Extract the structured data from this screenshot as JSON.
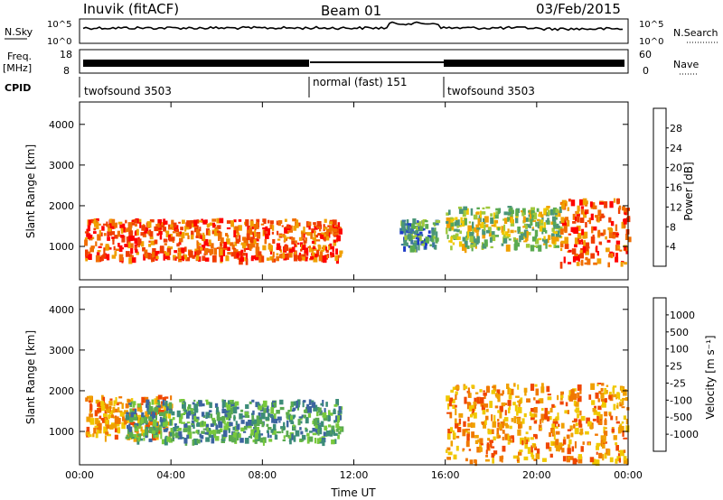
{
  "header": {
    "station": "Inuvik (fitACF)",
    "beam": "Beam 01",
    "date": "03/Feb/2015"
  },
  "top_panels": {
    "nsky_label": "N.Sky",
    "nsearch_label": "N.Search",
    "noise_ticks_left": [
      "10^5",
      "10^0"
    ],
    "noise_ticks_right": [
      "10^5",
      "10^0"
    ],
    "freq_label": "Freq.",
    "freq_unit": "[MHz]",
    "freq_ticks": [
      "18",
      "8"
    ],
    "nave_label": "Nave",
    "nave_ticks": [
      "60",
      "0"
    ],
    "cpid_label": "CPID",
    "cpid_segments": [
      {
        "label": "twofsound 3503",
        "start_hour": 0,
        "end_hour": 10
      },
      {
        "label": "normal (fast) 151",
        "start_hour": 10,
        "end_hour": 16
      },
      {
        "label": "twofsound 3503",
        "start_hour": 16,
        "end_hour": 24
      }
    ]
  },
  "chart_data": [
    {
      "type": "heatmap",
      "panel": "power",
      "ylabel": "Slant Range [km]",
      "xlabel": "Time UT",
      "x_ticks": [
        "00:00",
        "04:00",
        "08:00",
        "12:00",
        "16:00",
        "20:00",
        "00:00"
      ],
      "y_ticks": [
        1000,
        2000,
        3000,
        4000
      ],
      "xlim": [
        0,
        24
      ],
      "ylim": [
        180,
        4550
      ],
      "colorbar": {
        "label": "Power [dB]",
        "ticks": [
          "28",
          "24",
          "20",
          "16",
          "12",
          "8",
          "4"
        ],
        "colors": [
          "#0000ff",
          "#1e3cc8",
          "#3c78a0",
          "#4b9678",
          "#5aaa50",
          "#a0c83c",
          "#f0c800",
          "#f0a000",
          "#f06e00",
          "#f03c00",
          "#ff0000"
        ]
      },
      "features": [
        {
          "t0": 0.2,
          "t1": 11.4,
          "r0": 700,
          "r1": 1700,
          "level": "high"
        },
        {
          "t0": 14.0,
          "t1": 15.6,
          "r0": 1000,
          "r1": 1700,
          "level": "low"
        },
        {
          "t0": 16.0,
          "t1": 21.0,
          "r0": 1000,
          "r1": 2000,
          "level": "mid"
        },
        {
          "t0": 21.0,
          "t1": 24.0,
          "r0": 600,
          "r1": 2200,
          "level": "high"
        }
      ]
    },
    {
      "type": "heatmap",
      "panel": "velocity",
      "ylabel": "Slant Range [km]",
      "xlabel": "Time UT",
      "x_ticks": [
        "00:00",
        "04:00",
        "08:00",
        "12:00",
        "16:00",
        "20:00",
        "00:00"
      ],
      "y_ticks": [
        1000,
        2000,
        3000,
        4000
      ],
      "xlim": [
        0,
        24
      ],
      "ylim": [
        180,
        4550
      ],
      "colorbar": {
        "label": "Velocity [m s⁻¹]",
        "ticks": [
          "1000",
          "500",
          "100",
          "25",
          "-25",
          "-100",
          "-500",
          "-1000"
        ],
        "colors": [
          "#1e3cc8",
          "#3c64a0",
          "#3c8c78",
          "#5aaa50",
          "#78c83c",
          "#c8c8c8",
          "#f0c800",
          "#f0a000",
          "#f07800",
          "#f04600",
          "#ff0000"
        ]
      },
      "features": [
        {
          "t0": 0.2,
          "t1": 4.0,
          "r0": 900,
          "r1": 1900,
          "level": "negative"
        },
        {
          "t0": 2.0,
          "t1": 11.4,
          "r0": 800,
          "r1": 1800,
          "level": "positive"
        },
        {
          "t0": 16.0,
          "t1": 24.0,
          "r0": 300,
          "r1": 2200,
          "level": "negative"
        }
      ]
    }
  ]
}
